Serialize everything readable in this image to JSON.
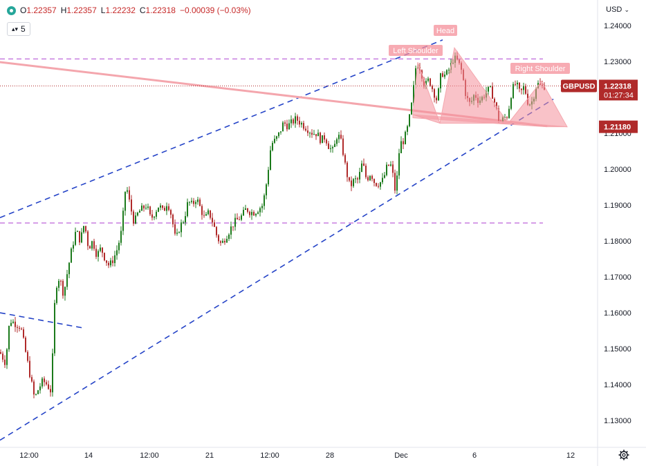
{
  "header": {
    "open_label": "O",
    "open": "1.22357",
    "high_label": "H",
    "high": "1.22357",
    "low_label": "L",
    "low": "1.22232",
    "close_label": "C",
    "close": "1.22318",
    "change": "−0.00039 (−0.03%)",
    "interval": "5",
    "currency": "USD"
  },
  "chart_data": {
    "type": "candlestick",
    "symbol": "GBPUSD",
    "last_price": "1.22318",
    "countdown": "01:27:34",
    "level_label": "1.21180",
    "y_ticks": [
      "1.24000",
      "1.23000",
      "1.22000",
      "1.21000",
      "1.20000",
      "1.19000",
      "1.18000",
      "1.17000",
      "1.16000",
      "1.15000",
      "1.14000",
      "1.13000"
    ],
    "y_tick_values": [
      1.24,
      1.23,
      1.22,
      1.21,
      1.2,
      1.19,
      1.18,
      1.17,
      1.16,
      1.15,
      1.14,
      1.13
    ],
    "ylim": [
      1.1235,
      1.2435
    ],
    "x_ticks": [
      "12:00",
      "14",
      "12:00",
      "21",
      "12:00",
      "28",
      "Dec",
      "6",
      "12"
    ],
    "x_tick_index": [
      42,
      128,
      216,
      303,
      390,
      477,
      580,
      686,
      825
    ],
    "annotations": [
      "Head",
      "Left Shoulder",
      "Right Shoulder"
    ],
    "horizontal_lines": [
      1.2307,
      1.185
    ],
    "trend_lines": [
      {
        "style": "dashed",
        "from": [
          0,
          1.1865
        ],
        "to": [
          640,
          1.236
        ]
      },
      {
        "style": "dashed",
        "from": [
          0,
          1.1245
        ],
        "to": [
          800,
          1.2195
        ]
      },
      {
        "style": "dashed",
        "from": [
          0,
          1.16
        ],
        "to": [
          122,
          1.1557
        ]
      },
      {
        "style": "solid",
        "from": [
          0,
          1.2298
        ],
        "to": [
          790,
          1.212
        ]
      }
    ],
    "price_path": [
      [
        0,
        1.149
      ],
      [
        8,
        1.146
      ],
      [
        14,
        1.158
      ],
      [
        22,
        1.157
      ],
      [
        30,
        1.156
      ],
      [
        38,
        1.148
      ],
      [
        44,
        1.142
      ],
      [
        50,
        1.136
      ],
      [
        56,
        1.139
      ],
      [
        62,
        1.141
      ],
      [
        68,
        1.14
      ],
      [
        74,
        1.138
      ],
      [
        80,
        1.167
      ],
      [
        86,
        1.17
      ],
      [
        92,
        1.165
      ],
      [
        98,
        1.172
      ],
      [
        104,
        1.178
      ],
      [
        110,
        1.183
      ],
      [
        116,
        1.18
      ],
      [
        122,
        1.185
      ],
      [
        128,
        1.178
      ],
      [
        134,
        1.18
      ],
      [
        140,
        1.176
      ],
      [
        146,
        1.178
      ],
      [
        152,
        1.175
      ],
      [
        158,
        1.173
      ],
      [
        164,
        1.175
      ],
      [
        170,
        1.178
      ],
      [
        176,
        1.183
      ],
      [
        182,
        1.196
      ],
      [
        188,
        1.19
      ],
      [
        194,
        1.185
      ],
      [
        200,
        1.188
      ],
      [
        206,
        1.189
      ],
      [
        212,
        1.19
      ],
      [
        218,
        1.186
      ],
      [
        224,
        1.188
      ],
      [
        230,
        1.19
      ],
      [
        236,
        1.188
      ],
      [
        242,
        1.191
      ],
      [
        248,
        1.187
      ],
      [
        254,
        1.18
      ],
      [
        260,
        1.184
      ],
      [
        266,
        1.186
      ],
      [
        272,
        1.191
      ],
      [
        278,
        1.19
      ],
      [
        284,
        1.192
      ],
      [
        290,
        1.189
      ],
      [
        296,
        1.186
      ],
      [
        302,
        1.188
      ],
      [
        308,
        1.185
      ],
      [
        314,
        1.181
      ],
      [
        320,
        1.179
      ],
      [
        326,
        1.181
      ],
      [
        332,
        1.183
      ],
      [
        338,
        1.185
      ],
      [
        344,
        1.186
      ],
      [
        350,
        1.187
      ],
      [
        356,
        1.189
      ],
      [
        362,
        1.188
      ],
      [
        368,
        1.188
      ],
      [
        374,
        1.189
      ],
      [
        380,
        1.19
      ],
      [
        386,
        1.197
      ],
      [
        392,
        1.207
      ],
      [
        398,
        1.208
      ],
      [
        404,
        1.21
      ],
      [
        410,
        1.213
      ],
      [
        416,
        1.212
      ],
      [
        422,
        1.213
      ],
      [
        428,
        1.214
      ],
      [
        434,
        1.213
      ],
      [
        440,
        1.212
      ],
      [
        446,
        1.211
      ],
      [
        452,
        1.21
      ],
      [
        458,
        1.21
      ],
      [
        464,
        1.208
      ],
      [
        470,
        1.209
      ],
      [
        476,
        1.206
      ],
      [
        482,
        1.205
      ],
      [
        488,
        1.21
      ],
      [
        494,
        1.207
      ],
      [
        500,
        1.2
      ],
      [
        506,
        1.195
      ],
      [
        512,
        1.197
      ],
      [
        518,
        1.197
      ],
      [
        524,
        1.202
      ],
      [
        530,
        1.197
      ],
      [
        536,
        1.199
      ],
      [
        542,
        1.196
      ],
      [
        548,
        1.196
      ],
      [
        554,
        1.197
      ],
      [
        560,
        1.201
      ],
      [
        566,
        1.201
      ],
      [
        572,
        1.193
      ],
      [
        578,
        1.207
      ],
      [
        584,
        1.208
      ],
      [
        590,
        1.212
      ],
      [
        596,
        1.219
      ],
      [
        602,
        1.23
      ],
      [
        608,
        1.228
      ],
      [
        614,
        1.223
      ],
      [
        620,
        1.225
      ],
      [
        626,
        1.222
      ],
      [
        632,
        1.219
      ],
      [
        638,
        1.227
      ],
      [
        644,
        1.226
      ],
      [
        650,
        1.228
      ],
      [
        656,
        1.231
      ],
      [
        662,
        1.23
      ],
      [
        668,
        1.227
      ],
      [
        674,
        1.22
      ],
      [
        680,
        1.218
      ],
      [
        686,
        1.221
      ],
      [
        692,
        1.219
      ],
      [
        698,
        1.22
      ],
      [
        704,
        1.222
      ],
      [
        710,
        1.222
      ],
      [
        716,
        1.218
      ],
      [
        722,
        1.213
      ],
      [
        728,
        1.214
      ],
      [
        734,
        1.215
      ],
      [
        740,
        1.222
      ],
      [
        746,
        1.224
      ],
      [
        752,
        1.221
      ],
      [
        758,
        1.223
      ],
      [
        764,
        1.218
      ],
      [
        770,
        1.219
      ],
      [
        776,
        1.224
      ],
      [
        782,
        1.223
      ],
      [
        788,
        1.2232
      ]
    ]
  }
}
